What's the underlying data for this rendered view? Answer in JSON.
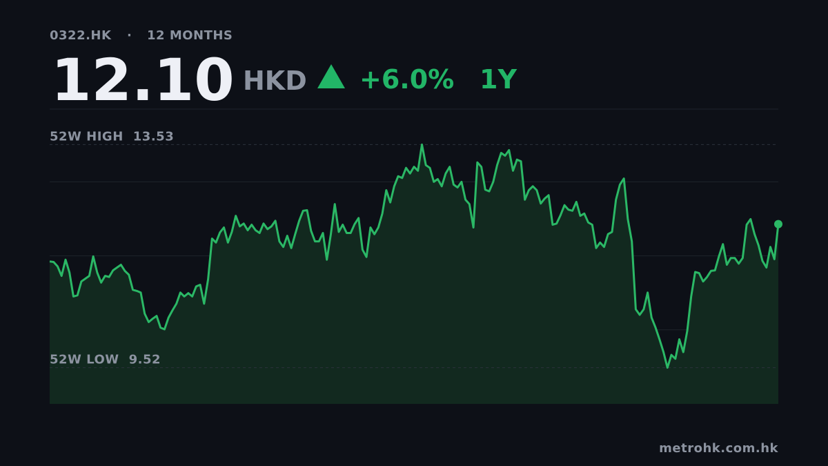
{
  "header": {
    "ticker": "0322.HK",
    "separator": "·",
    "period": "12 MONTHS",
    "price": "12.10",
    "currency": "HKD",
    "change": "+6.0%",
    "range": "1Y"
  },
  "chart_data": {
    "type": "line",
    "high_label": "52W HIGH",
    "high": 13.53,
    "low_label": "52W LOW",
    "low": 9.52,
    "color": "#2bb866",
    "area_color": "#12291f",
    "ylim": [
      8.87,
      14.18
    ],
    "yticks": [
      10.2,
      11.53,
      12.86
    ],
    "grid": true,
    "values": [
      11.43,
      11.42,
      11.34,
      11.17,
      11.46,
      11.23,
      10.8,
      10.82,
      11.07,
      11.12,
      11.17,
      11.52,
      11.23,
      11.05,
      11.17,
      11.15,
      11.27,
      11.32,
      11.37,
      11.26,
      11.19,
      10.92,
      10.9,
      10.87,
      10.49,
      10.34,
      10.4,
      10.45,
      10.24,
      10.21,
      10.42,
      10.55,
      10.67,
      10.87,
      10.8,
      10.86,
      10.8,
      10.98,
      11.01,
      10.67,
      11.11,
      11.84,
      11.77,
      11.95,
      12.04,
      11.77,
      11.96,
      12.25,
      12.06,
      12.11,
      11.99,
      12.09,
      11.99,
      11.94,
      12.11,
      12.01,
      12.06,
      12.16,
      11.79,
      11.69,
      11.89,
      11.67,
      11.92,
      12.16,
      12.34,
      12.35,
      11.98,
      11.79,
      11.79,
      11.94,
      11.46,
      11.92,
      12.46,
      11.96,
      12.09,
      11.94,
      11.94,
      12.1,
      12.21,
      11.64,
      11.51,
      12.04,
      11.92,
      12.04,
      12.29,
      12.71,
      12.49,
      12.78,
      12.96,
      12.93,
      13.11,
      13.01,
      13.13,
      13.06,
      13.53,
      13.16,
      13.11,
      12.86,
      12.91,
      12.78,
      13.01,
      13.13,
      12.81,
      12.76,
      12.86,
      12.54,
      12.46,
      12.04,
      13.21,
      13.13,
      12.72,
      12.69,
      12.86,
      13.16,
      13.38,
      13.33,
      13.43,
      13.06,
      13.26,
      13.23,
      12.54,
      12.71,
      12.78,
      12.71,
      12.47,
      12.56,
      12.62,
      12.09,
      12.11,
      12.26,
      12.44,
      12.36,
      12.34,
      12.5,
      12.25,
      12.29,
      12.13,
      12.09,
      11.67,
      11.77,
      11.69,
      11.92,
      11.96,
      12.54,
      12.81,
      12.92,
      12.19,
      11.79,
      10.57,
      10.47,
      10.57,
      10.87,
      10.42,
      10.24,
      10.03,
      9.8,
      9.52,
      9.75,
      9.68,
      10.03,
      9.8,
      10.18,
      10.8,
      11.24,
      11.22,
      11.07,
      11.15,
      11.26,
      11.27,
      11.52,
      11.74,
      11.37,
      11.49,
      11.49,
      11.39,
      11.49,
      12.09,
      12.19,
      11.92,
      11.72,
      11.44,
      11.32,
      11.69,
      11.47,
      12.1
    ]
  },
  "footer": {
    "source": "metrohk.com.hk"
  }
}
